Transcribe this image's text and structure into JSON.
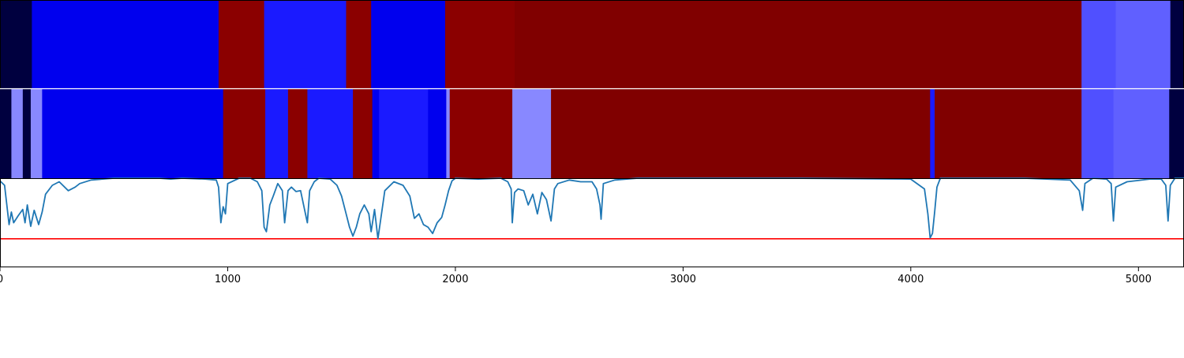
{
  "chart_data": {
    "type": "area",
    "x_axis": {
      "range": [
        0,
        5200
      ],
      "ticks": [
        0,
        1000,
        2000,
        3000,
        4000,
        5000
      ],
      "tick_labels": [
        "0",
        "1000",
        "2000",
        "3000",
        "4000",
        "5000"
      ]
    },
    "colors": {
      "dark_navy": "#00003f",
      "blue": "#0000ee",
      "bright_blue": "#1a1aff",
      "medium_blue": "#5050ff",
      "light_blue": "#6060ff",
      "pale_blue": "#8888ff",
      "red": "#8b0000",
      "dark_red": "#800000",
      "line": "#1f77b4",
      "threshold": "#ff0000"
    },
    "strip_top": {
      "segments": [
        {
          "start": 0,
          "end": 140,
          "color": "dark_navy"
        },
        {
          "start": 140,
          "end": 960,
          "color": "blue"
        },
        {
          "start": 960,
          "end": 1160,
          "color": "red"
        },
        {
          "start": 1160,
          "end": 1520,
          "color": "bright_blue"
        },
        {
          "start": 1520,
          "end": 1630,
          "color": "red"
        },
        {
          "start": 1630,
          "end": 1955,
          "color": "blue"
        },
        {
          "start": 1955,
          "end": 2260,
          "color": "red"
        },
        {
          "start": 2260,
          "end": 4750,
          "color": "dark_red"
        },
        {
          "start": 4750,
          "end": 4900,
          "color": "medium_blue"
        },
        {
          "start": 4900,
          "end": 5140,
          "color": "light_blue"
        },
        {
          "start": 5140,
          "end": 5200,
          "color": "dark_navy"
        }
      ]
    },
    "strip_bottom": {
      "segments": [
        {
          "start": 0,
          "end": 50,
          "color": "dark_navy"
        },
        {
          "start": 50,
          "end": 100,
          "color": "pale_blue"
        },
        {
          "start": 100,
          "end": 135,
          "color": "dark_navy"
        },
        {
          "start": 135,
          "end": 185,
          "color": "pale_blue"
        },
        {
          "start": 185,
          "end": 980,
          "color": "blue"
        },
        {
          "start": 980,
          "end": 1165,
          "color": "red"
        },
        {
          "start": 1165,
          "end": 1265,
          "color": "bright_blue"
        },
        {
          "start": 1265,
          "end": 1350,
          "color": "red"
        },
        {
          "start": 1350,
          "end": 1550,
          "color": "bright_blue"
        },
        {
          "start": 1550,
          "end": 1635,
          "color": "red"
        },
        {
          "start": 1635,
          "end": 1665,
          "color": "blue"
        },
        {
          "start": 1665,
          "end": 1880,
          "color": "bright_blue"
        },
        {
          "start": 1880,
          "end": 1960,
          "color": "blue"
        },
        {
          "start": 1960,
          "end": 1975,
          "color": "pale_blue"
        },
        {
          "start": 1975,
          "end": 2250,
          "color": "red"
        },
        {
          "start": 2250,
          "end": 2420,
          "color": "pale_blue"
        },
        {
          "start": 2420,
          "end": 4085,
          "color": "dark_red"
        },
        {
          "start": 4085,
          "end": 4105,
          "color": "bright_blue"
        },
        {
          "start": 4105,
          "end": 4750,
          "color": "dark_red"
        },
        {
          "start": 4750,
          "end": 4890,
          "color": "medium_blue"
        },
        {
          "start": 4890,
          "end": 5135,
          "color": "light_blue"
        },
        {
          "start": 5135,
          "end": 5200,
          "color": "dark_navy"
        }
      ]
    },
    "line_series": {
      "y_range": [
        0,
        1
      ],
      "threshold": 0.32,
      "x": [
        0,
        20,
        40,
        50,
        60,
        80,
        100,
        110,
        120,
        135,
        150,
        170,
        185,
        200,
        230,
        260,
        300,
        330,
        350,
        400,
        500,
        600,
        700,
        750,
        800,
        900,
        950,
        960,
        970,
        980,
        990,
        1000,
        1050,
        1100,
        1130,
        1150,
        1160,
        1170,
        1185,
        1200,
        1220,
        1240,
        1250,
        1265,
        1280,
        1300,
        1320,
        1340,
        1350,
        1360,
        1380,
        1400,
        1450,
        1480,
        1500,
        1520,
        1535,
        1550,
        1565,
        1580,
        1600,
        1620,
        1630,
        1645,
        1660,
        1670,
        1690,
        1730,
        1770,
        1800,
        1820,
        1840,
        1860,
        1880,
        1900,
        1920,
        1940,
        1955,
        1970,
        1985,
        2000,
        2100,
        2200,
        2230,
        2245,
        2250,
        2260,
        2275,
        2300,
        2320,
        2340,
        2360,
        2380,
        2400,
        2420,
        2435,
        2450,
        2500,
        2550,
        2600,
        2620,
        2635,
        2640,
        2650,
        2700,
        2800,
        3000,
        3500,
        4000,
        4060,
        4075,
        4085,
        4095,
        4105,
        4115,
        4130,
        4200,
        4500,
        4700,
        4740,
        4755,
        4765,
        4800,
        4860,
        4880,
        4890,
        4900,
        4950,
        5050,
        5100,
        5120,
        5130,
        5140,
        5160,
        5200
      ],
      "y": [
        0.97,
        0.92,
        0.48,
        0.62,
        0.5,
        0.58,
        0.65,
        0.5,
        0.7,
        0.46,
        0.64,
        0.48,
        0.62,
        0.82,
        0.92,
        0.96,
        0.86,
        0.9,
        0.94,
        0.98,
        1.0,
        1.0,
        1.0,
        0.99,
        1.0,
        0.99,
        0.98,
        0.9,
        0.5,
        0.68,
        0.6,
        0.94,
        1.0,
        1.0,
        0.96,
        0.86,
        0.45,
        0.4,
        0.7,
        0.8,
        0.94,
        0.86,
        0.5,
        0.86,
        0.9,
        0.85,
        0.86,
        0.62,
        0.5,
        0.86,
        0.96,
        1.0,
        0.99,
        0.92,
        0.8,
        0.6,
        0.45,
        0.35,
        0.45,
        0.6,
        0.7,
        0.6,
        0.4,
        0.65,
        0.32,
        0.5,
        0.86,
        0.96,
        0.92,
        0.8,
        0.55,
        0.6,
        0.48,
        0.45,
        0.38,
        0.5,
        0.56,
        0.7,
        0.86,
        0.97,
        1.0,
        0.99,
        1.0,
        0.96,
        0.88,
        0.5,
        0.84,
        0.88,
        0.86,
        0.7,
        0.82,
        0.6,
        0.84,
        0.76,
        0.52,
        0.88,
        0.94,
        0.98,
        0.96,
        0.96,
        0.88,
        0.7,
        0.54,
        0.94,
        0.98,
        1.0,
        1.0,
        1.0,
        0.99,
        0.88,
        0.6,
        0.33,
        0.38,
        0.62,
        0.9,
        1.0,
        1.0,
        1.0,
        0.98,
        0.86,
        0.64,
        0.94,
        1.0,
        0.99,
        0.94,
        0.52,
        0.9,
        0.96,
        0.99,
        0.99,
        0.92,
        0.52,
        0.92,
        1.0,
        1.0
      ]
    }
  }
}
